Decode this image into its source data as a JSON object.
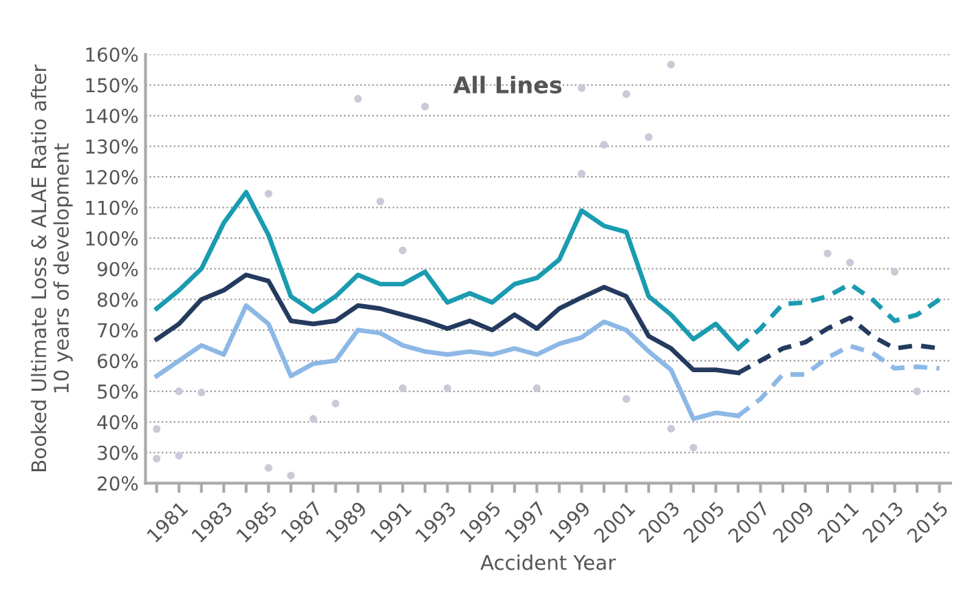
{
  "chart_data": {
    "type": "line",
    "title": "All Lines",
    "xlabel": "Accident Year",
    "ylabel": "Booked Ultimate Loss & ALAE Ratio after\n10 years of development",
    "x": [
      1980,
      1981,
      1982,
      1983,
      1984,
      1985,
      1986,
      1987,
      1988,
      1989,
      1990,
      1991,
      1992,
      1993,
      1994,
      1995,
      1996,
      1997,
      1998,
      1999,
      2000,
      2001,
      2002,
      2003,
      2004,
      2005,
      2006,
      2007,
      2008,
      2009,
      2010,
      2011,
      2012,
      2013,
      2014,
      2015
    ],
    "xlim": [
      1979.5,
      2015.5
    ],
    "xticks": [
      {
        "value": 1980,
        "label": null
      },
      1981,
      {
        "value": 1982,
        "label": null
      },
      1983,
      {
        "value": 1984,
        "label": null
      },
      1985,
      {
        "value": 1986,
        "label": null
      },
      1987,
      {
        "value": 1988,
        "label": null
      },
      1989,
      {
        "value": 1990,
        "label": null
      },
      1991,
      {
        "value": 1992,
        "label": null
      },
      1993,
      {
        "value": 1994,
        "label": null
      },
      1995,
      {
        "value": 1996,
        "label": null
      },
      1997,
      {
        "value": 1998,
        "label": null
      },
      1999,
      {
        "value": 2000,
        "label": null
      },
      2001,
      {
        "value": 2002,
        "label": null
      },
      2003,
      {
        "value": 2004,
        "label": null
      },
      2005,
      {
        "value": 2006,
        "label": null
      },
      2007,
      {
        "value": 2008,
        "label": null
      },
      2009,
      {
        "value": 2010,
        "label": null
      },
      2011,
      {
        "value": 2012,
        "label": null
      },
      2013,
      {
        "value": 2014,
        "label": null
      },
      2015
    ],
    "ylim": [
      20,
      160
    ],
    "yticks": [
      {
        "value": 20,
        "label": "20%"
      },
      {
        "value": 30,
        "label": "30%"
      },
      {
        "value": 40,
        "label": "40%"
      },
      {
        "value": 50,
        "label": "50%"
      },
      {
        "value": 60,
        "label": "60%"
      },
      {
        "value": 70,
        "label": "70%"
      },
      {
        "value": 80,
        "label": "80%"
      },
      {
        "value": 90,
        "label": "90%"
      },
      {
        "value": 100,
        "label": "100%"
      },
      {
        "value": 110,
        "label": "110%"
      },
      {
        "value": 120,
        "label": "120%"
      },
      {
        "value": 130,
        "label": "130%"
      },
      {
        "value": 140,
        "label": "140%"
      },
      {
        "value": 150,
        "label": "150%"
      },
      {
        "value": 160,
        "label": "160%"
      }
    ],
    "grid": "y",
    "marker": "none",
    "series": [
      {
        "type": "scatter",
        "color": "#cdc8d8",
        "marker": "circle",
        "x": [
          1980,
          1980,
          1981,
          1981,
          1982,
          1985,
          1985,
          1986,
          1987,
          1988,
          1989,
          1990,
          1991,
          1991,
          1992,
          1993,
          1997,
          1999,
          1999,
          2000,
          2001,
          2001,
          2002,
          2003,
          2003,
          2004,
          2010,
          2011,
          2013,
          2014
        ],
        "values": [
          37.7,
          28,
          29,
          50,
          49.6,
          114.5,
          25,
          22.5,
          41,
          46,
          145.5,
          112,
          51,
          96,
          143,
          51,
          51,
          149,
          121,
          130.5,
          147,
          47.5,
          133,
          156.7,
          37.8,
          31.6,
          95,
          92,
          89,
          50
        ]
      },
      {
        "line_style": "solid",
        "color": "#1a9bb0",
        "values": [
          77,
          83,
          90,
          105,
          115,
          101,
          81,
          76,
          81,
          88,
          85,
          85,
          89,
          79,
          82,
          79,
          85,
          87,
          93,
          109,
          104,
          102,
          81,
          75,
          67,
          72,
          64,
          null,
          null,
          null,
          null,
          null,
          null,
          null,
          null,
          null
        ]
      },
      {
        "line_style": "solid",
        "color": "#243a5e",
        "values": [
          67,
          72,
          80,
          83,
          88,
          86,
          73,
          72,
          73,
          78,
          77,
          75,
          73,
          70.5,
          73,
          70,
          75,
          70.5,
          77,
          80.6,
          84,
          81,
          68,
          64,
          57,
          57,
          56,
          null,
          null,
          null,
          null,
          null,
          null,
          null,
          null,
          null
        ]
      },
      {
        "line_style": "solid",
        "color": "#8db8e6",
        "values": [
          55,
          60,
          65,
          62,
          78,
          72,
          55,
          59,
          60,
          70,
          69,
          65,
          63,
          62,
          63,
          62,
          64,
          62,
          65.5,
          67.6,
          72.7,
          70,
          63,
          57,
          41,
          43,
          42,
          null,
          null,
          null,
          null,
          null,
          null,
          null,
          null,
          null
        ]
      },
      {
        "line_style": "dashed",
        "color": "#1a9bb0",
        "values": [
          null,
          null,
          null,
          null,
          null,
          null,
          null,
          null,
          null,
          null,
          null,
          null,
          null,
          null,
          null,
          null,
          null,
          null,
          null,
          null,
          null,
          null,
          null,
          null,
          null,
          null,
          64,
          70.5,
          78.5,
          79,
          81,
          85,
          80,
          73,
          75,
          80
        ]
      },
      {
        "line_style": "dashed",
        "color": "#243a5e",
        "values": [
          null,
          null,
          null,
          null,
          null,
          null,
          null,
          null,
          null,
          null,
          null,
          null,
          null,
          null,
          null,
          null,
          null,
          null,
          null,
          null,
          null,
          null,
          null,
          null,
          null,
          null,
          56,
          60,
          64,
          66,
          70.5,
          74,
          68,
          64,
          65,
          64
        ]
      },
      {
        "line_style": "dashed",
        "color": "#8db8e6",
        "values": [
          null,
          null,
          null,
          null,
          null,
          null,
          null,
          null,
          null,
          null,
          null,
          null,
          null,
          null,
          null,
          null,
          null,
          null,
          null,
          null,
          null,
          null,
          null,
          null,
          null,
          null,
          42,
          47.5,
          55.5,
          55.5,
          61,
          64.8,
          62.6,
          57.5,
          58,
          57.5
        ]
      }
    ]
  }
}
